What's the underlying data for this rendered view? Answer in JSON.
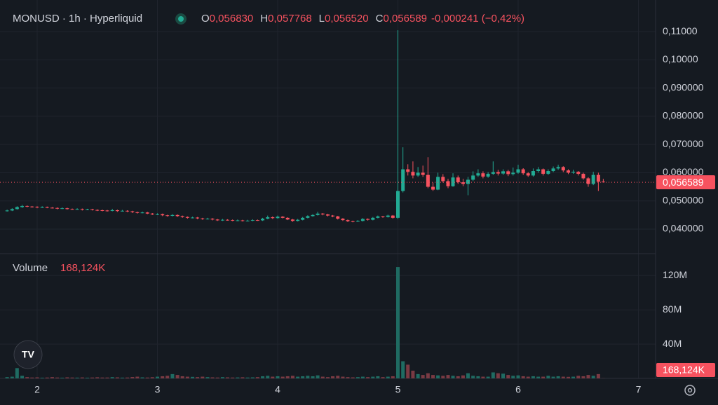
{
  "chart_data": {
    "type": "candlestick",
    "header": {
      "symbol": "MONUSD · 1h · Hyperliquid",
      "ohlc": [
        {
          "label": "O",
          "value": "0,056830"
        },
        {
          "label": "H",
          "value": "0,057768"
        },
        {
          "label": "L",
          "value": "0,056520"
        },
        {
          "label": "C",
          "value": "0,056589"
        }
      ],
      "change": "-0,000241 (−0,42%)"
    },
    "volume_title": "Volume",
    "volume_value": "168,124K",
    "x": [
      1.75,
      1.792,
      1.833,
      1.875,
      1.917,
      1.958,
      2.0,
      2.042,
      2.083,
      2.125,
      2.167,
      2.208,
      2.25,
      2.292,
      2.333,
      2.375,
      2.417,
      2.458,
      2.5,
      2.542,
      2.583,
      2.625,
      2.667,
      2.708,
      2.75,
      2.792,
      2.833,
      2.875,
      2.917,
      2.958,
      3.0,
      3.042,
      3.083,
      3.125,
      3.167,
      3.208,
      3.25,
      3.292,
      3.333,
      3.375,
      3.417,
      3.458,
      3.5,
      3.542,
      3.583,
      3.625,
      3.667,
      3.708,
      3.75,
      3.792,
      3.833,
      3.875,
      3.917,
      3.958,
      4.0,
      4.042,
      4.083,
      4.125,
      4.167,
      4.208,
      4.25,
      4.292,
      4.333,
      4.375,
      4.417,
      4.458,
      4.5,
      4.542,
      4.583,
      4.625,
      4.667,
      4.708,
      4.75,
      4.792,
      4.833,
      4.875,
      4.917,
      4.958,
      5.0,
      5.042,
      5.083,
      5.125,
      5.167,
      5.208,
      5.25,
      5.292,
      5.333,
      5.375,
      5.417,
      5.458,
      5.5,
      5.542,
      5.583,
      5.625,
      5.667,
      5.708,
      5.75,
      5.792,
      5.833,
      5.875,
      5.917,
      5.958,
      6.0,
      6.042,
      6.083,
      6.125,
      6.167,
      6.208,
      6.25,
      6.292,
      6.333,
      6.375,
      6.417,
      6.458,
      6.5,
      6.542,
      6.583,
      6.625,
      6.667,
      6.708
    ],
    "candles": [
      [
        0.0465,
        0.0469,
        0.0462,
        0.0466
      ],
      [
        0.0466,
        0.0474,
        0.0464,
        0.0471
      ],
      [
        0.0471,
        0.0481,
        0.0469,
        0.0478
      ],
      [
        0.0478,
        0.0486,
        0.0475,
        0.0482
      ],
      [
        0.0482,
        0.0484,
        0.0477,
        0.048
      ],
      [
        0.048,
        0.0482,
        0.0476,
        0.0479
      ],
      [
        0.0479,
        0.0481,
        0.0474,
        0.0477
      ],
      [
        0.0477,
        0.0481,
        0.0475,
        0.0478
      ],
      [
        0.0478,
        0.048,
        0.0474,
        0.0476
      ],
      [
        0.0476,
        0.0478,
        0.0473,
        0.0475
      ],
      [
        0.0475,
        0.0477,
        0.047,
        0.0473
      ],
      [
        0.0473,
        0.0477,
        0.0471,
        0.0474
      ],
      [
        0.0474,
        0.0476,
        0.0469,
        0.0471
      ],
      [
        0.0471,
        0.0473,
        0.0468,
        0.047
      ],
      [
        0.047,
        0.0474,
        0.0468,
        0.0471
      ],
      [
        0.0471,
        0.0473,
        0.0466,
        0.0469
      ],
      [
        0.0469,
        0.0472,
        0.0467,
        0.047
      ],
      [
        0.047,
        0.0472,
        0.0466,
        0.0468
      ],
      [
        0.0468,
        0.047,
        0.0464,
        0.0467
      ],
      [
        0.0467,
        0.0469,
        0.0463,
        0.0466
      ],
      [
        0.0466,
        0.0468,
        0.0462,
        0.0465
      ],
      [
        0.0465,
        0.0472,
        0.0463,
        0.0467
      ],
      [
        0.0467,
        0.0469,
        0.0461,
        0.0464
      ],
      [
        0.0464,
        0.0468,
        0.0462,
        0.0465
      ],
      [
        0.0465,
        0.0467,
        0.046,
        0.0463
      ],
      [
        0.0463,
        0.0465,
        0.0457,
        0.046
      ],
      [
        0.046,
        0.0462,
        0.0455,
        0.0458
      ],
      [
        0.0458,
        0.0462,
        0.0456,
        0.0459
      ],
      [
        0.0459,
        0.0461,
        0.0453,
        0.0455
      ],
      [
        0.0455,
        0.0457,
        0.045,
        0.0452
      ],
      [
        0.0452,
        0.0456,
        0.045,
        0.0453
      ],
      [
        0.0453,
        0.0455,
        0.0446,
        0.0449
      ],
      [
        0.0449,
        0.0451,
        0.0444,
        0.0447
      ],
      [
        0.0447,
        0.0453,
        0.0445,
        0.045
      ],
      [
        0.045,
        0.0452,
        0.0443,
        0.0446
      ],
      [
        0.0446,
        0.0448,
        0.044,
        0.0443
      ],
      [
        0.0443,
        0.0445,
        0.0437,
        0.044
      ],
      [
        0.044,
        0.0444,
        0.0438,
        0.0441
      ],
      [
        0.0441,
        0.0443,
        0.0435,
        0.0438
      ],
      [
        0.0438,
        0.044,
        0.0433,
        0.0436
      ],
      [
        0.0436,
        0.044,
        0.0434,
        0.0437
      ],
      [
        0.0437,
        0.0439,
        0.0431,
        0.0434
      ],
      [
        0.0434,
        0.0436,
        0.0429,
        0.0431
      ],
      [
        0.0431,
        0.0436,
        0.0429,
        0.0433
      ],
      [
        0.0433,
        0.0435,
        0.043,
        0.0432
      ],
      [
        0.0432,
        0.0434,
        0.0428,
        0.043
      ],
      [
        0.043,
        0.0434,
        0.0428,
        0.0431
      ],
      [
        0.0431,
        0.0433,
        0.0427,
        0.0429
      ],
      [
        0.0429,
        0.0433,
        0.0427,
        0.043
      ],
      [
        0.043,
        0.0435,
        0.0428,
        0.0432
      ],
      [
        0.0432,
        0.0434,
        0.0429,
        0.0431
      ],
      [
        0.0431,
        0.044,
        0.0429,
        0.0437
      ],
      [
        0.0437,
        0.0448,
        0.0435,
        0.0442
      ],
      [
        0.0442,
        0.0445,
        0.0436,
        0.0439
      ],
      [
        0.0439,
        0.0448,
        0.0437,
        0.0444
      ],
      [
        0.0444,
        0.0446,
        0.0438,
        0.044
      ],
      [
        0.044,
        0.0442,
        0.0432,
        0.0434
      ],
      [
        0.0434,
        0.0436,
        0.0426,
        0.0429
      ],
      [
        0.0429,
        0.0436,
        0.0427,
        0.0433
      ],
      [
        0.0433,
        0.0443,
        0.0431,
        0.044
      ],
      [
        0.044,
        0.0449,
        0.0438,
        0.0446
      ],
      [
        0.0446,
        0.0453,
        0.0444,
        0.045
      ],
      [
        0.045,
        0.0461,
        0.0448,
        0.0455
      ],
      [
        0.0455,
        0.0457,
        0.0449,
        0.0452
      ],
      [
        0.0452,
        0.0454,
        0.0445,
        0.0448
      ],
      [
        0.0448,
        0.045,
        0.0442,
        0.0445
      ],
      [
        0.0445,
        0.0447,
        0.0434,
        0.0437
      ],
      [
        0.0437,
        0.0439,
        0.0429,
        0.0432
      ],
      [
        0.0432,
        0.0434,
        0.0425,
        0.0428
      ],
      [
        0.0428,
        0.043,
        0.0424,
        0.0427
      ],
      [
        0.0427,
        0.0432,
        0.0425,
        0.0429
      ],
      [
        0.0429,
        0.0439,
        0.0427,
        0.0436
      ],
      [
        0.0436,
        0.0438,
        0.043,
        0.0433
      ],
      [
        0.0433,
        0.0443,
        0.0431,
        0.044
      ],
      [
        0.044,
        0.0448,
        0.0438,
        0.0445
      ],
      [
        0.0445,
        0.0447,
        0.044,
        0.0443
      ],
      [
        0.0443,
        0.0451,
        0.0441,
        0.0448
      ],
      [
        0.0448,
        0.045,
        0.0437,
        0.044
      ],
      [
        0.044,
        0.1105,
        0.0436,
        0.0535
      ],
      [
        0.0535,
        0.069,
        0.053,
        0.0612
      ],
      [
        0.0612,
        0.063,
        0.059,
        0.0603
      ],
      [
        0.0603,
        0.064,
        0.058,
        0.059
      ],
      [
        0.059,
        0.062,
        0.0585,
        0.06
      ],
      [
        0.06,
        0.0625,
        0.0585,
        0.0592
      ],
      [
        0.0592,
        0.0655,
        0.0545,
        0.055
      ],
      [
        0.055,
        0.0565,
        0.0535,
        0.054
      ],
      [
        0.054,
        0.06,
        0.0538,
        0.0585
      ],
      [
        0.0585,
        0.0595,
        0.0565,
        0.057
      ],
      [
        0.057,
        0.0578,
        0.0545,
        0.0552
      ],
      [
        0.0552,
        0.0598,
        0.055,
        0.0583
      ],
      [
        0.0583,
        0.059,
        0.056,
        0.0566
      ],
      [
        0.0566,
        0.0578,
        0.0552,
        0.056
      ],
      [
        0.056,
        0.0585,
        0.052,
        0.0575
      ],
      [
        0.0575,
        0.0605,
        0.057,
        0.059
      ],
      [
        0.059,
        0.0612,
        0.0585,
        0.0598
      ],
      [
        0.0598,
        0.0605,
        0.058,
        0.0586
      ],
      [
        0.0586,
        0.0602,
        0.0582,
        0.0596
      ],
      [
        0.0596,
        0.064,
        0.0592,
        0.0602
      ],
      [
        0.0602,
        0.061,
        0.059,
        0.0597
      ],
      [
        0.0597,
        0.0612,
        0.0592,
        0.0605
      ],
      [
        0.0605,
        0.061,
        0.0588,
        0.0595
      ],
      [
        0.0595,
        0.0618,
        0.059,
        0.06
      ],
      [
        0.06,
        0.0628,
        0.0596,
        0.0612
      ],
      [
        0.0612,
        0.0616,
        0.0592,
        0.0598
      ],
      [
        0.0598,
        0.0602,
        0.0585,
        0.059
      ],
      [
        0.059,
        0.0615,
        0.0586,
        0.0606
      ],
      [
        0.0606,
        0.062,
        0.06,
        0.0612
      ],
      [
        0.0612,
        0.0615,
        0.059,
        0.0596
      ],
      [
        0.0596,
        0.0612,
        0.0592,
        0.0606
      ],
      [
        0.0606,
        0.0622,
        0.0602,
        0.0615
      ],
      [
        0.0615,
        0.0628,
        0.061,
        0.062
      ],
      [
        0.062,
        0.0623,
        0.0602,
        0.0608
      ],
      [
        0.0608,
        0.0612,
        0.0595,
        0.06
      ],
      [
        0.06,
        0.061,
        0.0596,
        0.0603
      ],
      [
        0.0603,
        0.0606,
        0.059,
        0.0596
      ],
      [
        0.0596,
        0.06,
        0.0575,
        0.058
      ],
      [
        0.058,
        0.0584,
        0.055,
        0.056
      ],
      [
        0.056,
        0.0603,
        0.0556,
        0.0592
      ],
      [
        0.0592,
        0.06,
        0.0535,
        0.0568
      ],
      [
        0.05683,
        0.057768,
        0.05652,
        0.056589
      ]
    ],
    "volume": [
      1500000.0,
      2000000.0,
      12000000.0,
      3000000.0,
      1500000.0,
      1000000.0,
      1200000.0,
      800000.0,
      1000000.0,
      1500000.0,
      1000000.0,
      800000.0,
      1200000.0,
      1000000.0,
      900000.0,
      1100000.0,
      800000.0,
      1000000.0,
      1300000.0,
      1000000.0,
      1000000.0,
      1500000.0,
      1200000.0,
      900000.0,
      1000000.0,
      1600000.0,
      2000000.0,
      1200000.0,
      1000000.0,
      1400000.0,
      2000000.0,
      2500000.0,
      3000000.0,
      5000000.0,
      4000000.0,
      2500000.0,
      2000000.0,
      1800000.0,
      1500000.0,
      2000000.0,
      1500000.0,
      1200000.0,
      1000000.0,
      1500000.0,
      1200000.0,
      1000000.0,
      1100000.0,
      1300000.0,
      1000000.0,
      1200000.0,
      1500000.0,
      2500000.0,
      3000000.0,
      2000000.0,
      2500000.0,
      2000000.0,
      2500000.0,
      3000000.0,
      2000000.0,
      2500000.0,
      3000000.0,
      2500000.0,
      3500000.0,
      2000000.0,
      1500000.0,
      2500000.0,
      3000000.0,
      2000000.0,
      1500000.0,
      1200000.0,
      1500000.0,
      2000000.0,
      1500000.0,
      2000000.0,
      2500000.0,
      1500000.0,
      2000000.0,
      2500000.0,
      130000000.0,
      20000000.0,
      16000000.0,
      9000000.0,
      5000000.0,
      4000000.0,
      6000000.0,
      4000000.0,
      3500000.0,
      3000000.0,
      4000000.0,
      3000000.0,
      2500000.0,
      3500000.0,
      6000000.0,
      3000000.0,
      2500000.0,
      2000000.0,
      2000000.0,
      7000000.0,
      6000000.0,
      5500000.0,
      4000000.0,
      3000000.0,
      3500000.0,
      2500000.0,
      2000000.0,
      2500000.0,
      2000000.0,
      2000000.0,
      3000000.0,
      2000000.0,
      2500000.0,
      2000000.0,
      1800000.0,
      2000000.0,
      3000000.0,
      2500000.0,
      4000000.0,
      3000000.0,
      5000000.0,
      168124
    ],
    "last_price": {
      "value": 0.056589,
      "label": "0,056589"
    },
    "last_volume": {
      "value": 168124,
      "label": "168,124K"
    },
    "xlim": [
      1.691,
      7.143
    ],
    "xticks": [
      2,
      3,
      4,
      5,
      6,
      7
    ],
    "ylim": [
      0.0313,
      0.1212
    ],
    "yticks": [
      {
        "value": 0.04,
        "label": "0,040000"
      },
      {
        "value": 0.05,
        "label": "0,050000"
      },
      {
        "value": 0.06,
        "label": "0,060000"
      },
      {
        "value": 0.07,
        "label": "0,070000"
      },
      {
        "value": 0.08,
        "label": "0,080000"
      },
      {
        "value": 0.09,
        "label": "0,090000"
      },
      {
        "value": 0.1,
        "label": "0,10000"
      },
      {
        "value": 0.11,
        "label": "0,11000"
      }
    ],
    "y2lim": [
      0,
      145600000.0
    ],
    "y2ticks": [
      {
        "value": 40000000.0,
        "label": "40M"
      },
      {
        "value": 80000000.0,
        "label": "80M"
      },
      {
        "value": 120000000.0,
        "label": "120M"
      }
    ],
    "grid": true,
    "up_color": "#22ab94",
    "down_color": "#f7525f",
    "volume_up_color": "#1f6b62",
    "volume_down_color": "#7a3a43"
  }
}
